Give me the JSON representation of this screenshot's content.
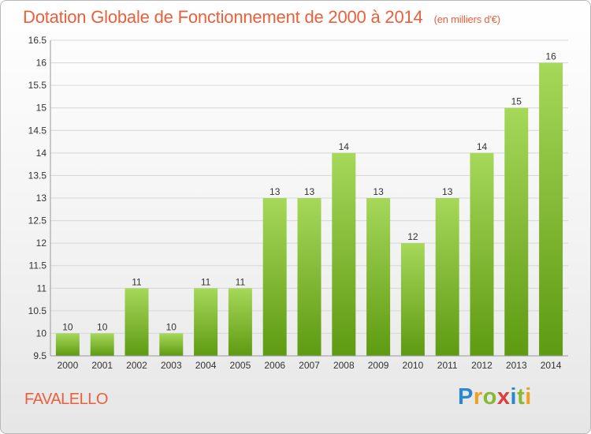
{
  "header": {
    "title": "Dotation Globale de Fonctionnement de 2000 à 2014",
    "subtitle": "(en milliers d'€)"
  },
  "footer": {
    "commune": "FAVALELLO",
    "logo_text": "Proxiti",
    "logo_letters": [
      {
        "char": "P",
        "color": "#2a88cc"
      },
      {
        "char": "r",
        "color": "#f0a020"
      },
      {
        "char": "o",
        "color": "#86b832"
      },
      {
        "char": "x",
        "color": "#e03c3c"
      },
      {
        "char": "i",
        "color": "#2a88cc"
      },
      {
        "char": "t",
        "color": "#86b832"
      },
      {
        "char": "i",
        "color": "#f0a020"
      }
    ]
  },
  "chart_data": {
    "type": "bar",
    "categories": [
      "2000",
      "2001",
      "2002",
      "2003",
      "2004",
      "2005",
      "2006",
      "2007",
      "2008",
      "2009",
      "2010",
      "2011",
      "2012",
      "2013",
      "2014"
    ],
    "values": [
      10,
      10,
      11,
      10,
      11,
      11,
      13,
      13,
      14,
      13,
      12,
      13,
      14,
      15,
      16
    ],
    "value_labels": [
      "10",
      "10",
      "11",
      "10",
      "11",
      "11",
      "13",
      "13",
      "14",
      "13",
      "12",
      "13",
      "14",
      "15",
      "16"
    ],
    "scale_values": [
      10,
      10,
      11,
      10,
      11,
      11,
      13,
      13,
      14,
      13,
      12,
      13,
      14,
      15,
      16
    ],
    "ylim": [
      9.5,
      16.5
    ],
    "yticks": [
      9.5,
      10,
      10.5,
      11,
      11.5,
      12,
      12.5,
      13,
      13.5,
      14,
      14.5,
      15,
      15.5,
      16,
      16.5
    ],
    "ytick_labels": [
      "9.5",
      "10",
      "10.5",
      "11",
      "11.5",
      "12",
      "12.5",
      "13",
      "13.5",
      "14",
      "14.5",
      "15",
      "15.5",
      "16",
      "16.5"
    ],
    "grid": true,
    "bar_color": "#7cbc2c",
    "xlabel": "",
    "ylabel": ""
  }
}
